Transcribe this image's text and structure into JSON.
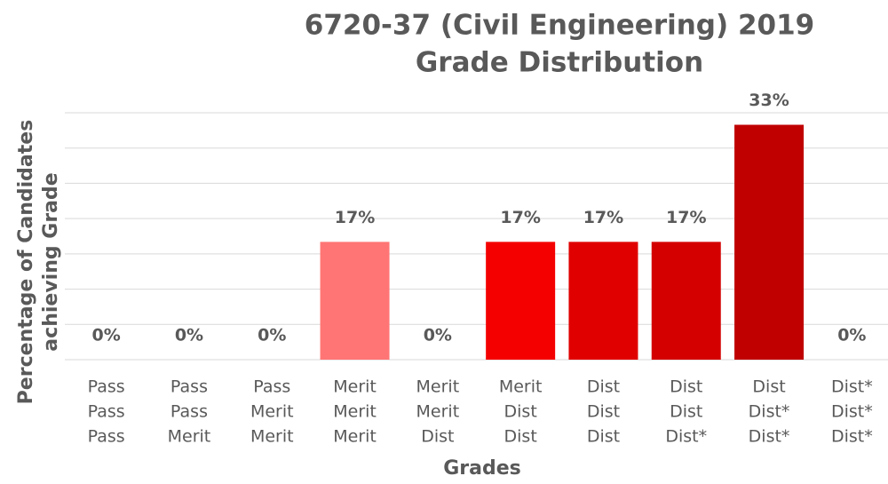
{
  "chart_data": {
    "type": "bar",
    "title": [
      "6720-37 (Civil Engineering) 2019",
      "Grade Distribution"
    ],
    "x_label": "Grades",
    "y_label": [
      "Percentage of Candidates",
      "achieving Grade"
    ],
    "categories": [
      [
        "Pass",
        "Pass",
        "Pass"
      ],
      [
        "Pass",
        "Pass",
        "Merit"
      ],
      [
        "Pass",
        "Merit",
        "Merit"
      ],
      [
        "Merit",
        "Merit",
        "Merit"
      ],
      [
        "Merit",
        "Merit",
        "Dist"
      ],
      [
        "Merit",
        "Dist",
        "Dist"
      ],
      [
        "Dist",
        "Dist",
        "Dist"
      ],
      [
        "Dist",
        "Dist",
        "Dist*"
      ],
      [
        "Dist",
        "Dist*",
        "Dist*"
      ],
      [
        "Dist*",
        "Dist*",
        "Dist*"
      ]
    ],
    "values": [
      0,
      0,
      0,
      16.7,
      0,
      16.7,
      16.7,
      16.7,
      33.3,
      0
    ],
    "value_labels": [
      "0%",
      "0%",
      "0%",
      "17%",
      "0%",
      "17%",
      "17%",
      "17%",
      "33%",
      "0%"
    ],
    "colors": [
      "#ffc0c0",
      "#ffb0b0",
      "#ffa0a0",
      "#ff7575",
      "#ff4040",
      "#f40000",
      "#e00000",
      "#d40000",
      "#c00000",
      "#a00000"
    ],
    "ylim": [
      0,
      35
    ],
    "yticks": [
      0,
      5,
      10,
      15,
      20,
      25,
      30,
      35
    ],
    "grid": true
  }
}
